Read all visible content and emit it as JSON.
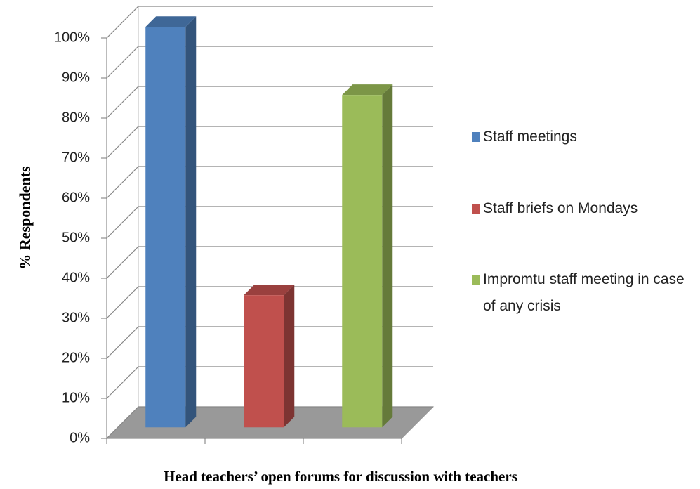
{
  "chart_data": {
    "type": "bar",
    "xlabel": "Head teachers’ open forums for discussion with teachers",
    "ylabel": "% Respondents",
    "categories": [
      null
    ],
    "series": [
      {
        "name": "Staff meetings",
        "color": "#4f81bd",
        "values": [
          100
        ]
      },
      {
        "name": "Staff briefs on Mondays",
        "color": "#c0504d",
        "values": [
          33
        ]
      },
      {
        "name": "Impromtu staff meeting in case of any crisis",
        "color": "#9bbb59",
        "values": [
          83
        ]
      }
    ],
    "ylim": [
      0,
      100
    ],
    "yticks": [
      {
        "value": 0,
        "label": "0%"
      },
      {
        "value": 10,
        "label": "10%"
      },
      {
        "value": 20,
        "label": "20%"
      },
      {
        "value": 30,
        "label": "30%"
      },
      {
        "value": 40,
        "label": "40%"
      },
      {
        "value": 50,
        "label": "50%"
      },
      {
        "value": 60,
        "label": "60%"
      },
      {
        "value": 70,
        "label": "70%"
      },
      {
        "value": 80,
        "label": "80%"
      },
      {
        "value": 90,
        "label": "90%"
      },
      {
        "value": 100,
        "label": "100%"
      }
    ],
    "grid": true,
    "legend": "right"
  }
}
